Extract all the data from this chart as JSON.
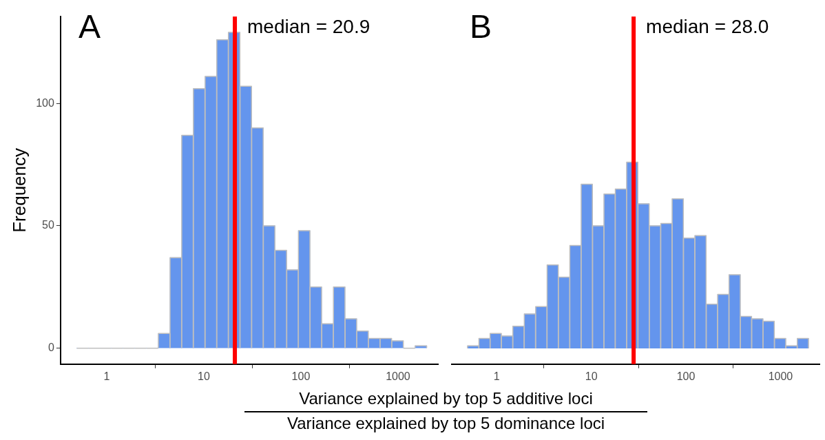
{
  "chart_data": [
    {
      "type": "histogram",
      "title": "A",
      "ylabel": "Frequency",
      "color": "#6495ed",
      "bins": [
        0.49,
        0.65,
        0.85,
        1.12,
        1.48,
        1.95,
        2.58,
        3.4,
        4.49,
        5.92,
        7.8,
        10.3,
        13.6,
        17.9,
        23.6,
        31.1,
        41,
        54.1,
        71.4,
        94.2,
        124,
        164,
        216,
        285,
        376,
        495,
        653,
        861,
        1138,
        1500,
        1977
      ],
      "values": [
        0,
        0,
        0,
        0,
        0,
        0,
        0,
        6,
        37,
        87,
        106,
        111,
        126,
        129,
        107,
        90,
        50,
        40,
        32,
        48,
        25,
        10,
        25,
        12,
        7,
        4,
        4,
        3,
        0,
        1
      ],
      "log": "x",
      "xlim": [
        0.335,
        2580
      ],
      "xticks": [
        1,
        10,
        100,
        1000
      ],
      "ylim": [
        -6.5,
        135.5
      ],
      "yticks": [
        0,
        50,
        100
      ],
      "grid": false,
      "ref_lines": [
        {
          "axis": "x",
          "value": 20.9,
          "label": "median = 20.9",
          "color": "#ff0000"
        }
      ],
      "annotations": [
        "Variance explained by top 5 additive loci",
        "Variance explained by top 5 dominance loci"
      ]
    },
    {
      "type": "histogram",
      "title": "B",
      "color": "#6495ed",
      "bins": [
        0.49,
        0.65,
        0.85,
        1.12,
        1.48,
        1.95,
        2.58,
        3.4,
        4.49,
        5.92,
        7.8,
        10.3,
        13.6,
        17.9,
        23.6,
        31.1,
        41,
        54.1,
        71.4,
        94.2,
        124,
        164,
        216,
        285,
        376,
        495,
        653,
        861,
        1138,
        1500,
        1977
      ],
      "values": [
        1,
        4,
        6,
        5,
        9,
        14,
        17,
        34,
        29,
        42,
        67,
        50,
        63,
        65,
        76,
        59,
        50,
        51,
        61,
        45,
        46,
        18,
        22,
        30,
        13,
        12,
        11,
        4,
        1,
        4
      ],
      "log": "x",
      "xlim": [
        0.335,
        2580
      ],
      "xticks": [
        1,
        10,
        100,
        1000
      ],
      "ylim": [
        -6.5,
        135.5
      ],
      "yticks": [
        0,
        50,
        100
      ],
      "grid": false,
      "tick_labels": "x",
      "ref_lines": [
        {
          "axis": "x",
          "value": 28.0,
          "label": "median = 28.0",
          "color": "#ff0000"
        }
      ]
    }
  ]
}
